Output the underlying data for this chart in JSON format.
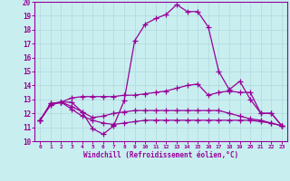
{
  "xlabel": "Windchill (Refroidissement éolien,°C)",
  "bg_color": "#c8eef0",
  "grid_color": "#b0d8da",
  "line_color": "#990099",
  "xlim": [
    -0.5,
    23.5
  ],
  "ylim": [
    10,
    20
  ],
  "xticks": [
    0,
    1,
    2,
    3,
    4,
    5,
    6,
    7,
    8,
    9,
    10,
    11,
    12,
    13,
    14,
    15,
    16,
    17,
    18,
    19,
    20,
    21,
    22,
    23
  ],
  "yticks": [
    10,
    11,
    12,
    13,
    14,
    15,
    16,
    17,
    18,
    19,
    20
  ],
  "line1_x": [
    0,
    1,
    2,
    3,
    4,
    5,
    6,
    7,
    8,
    9,
    10,
    11,
    12,
    13,
    14,
    15,
    16,
    17,
    18,
    19,
    20,
    21,
    22,
    23
  ],
  "line1_y": [
    11.5,
    12.7,
    12.8,
    12.8,
    12.1,
    10.9,
    10.5,
    11.1,
    12.9,
    17.2,
    18.4,
    18.8,
    19.1,
    19.8,
    19.3,
    19.3,
    18.2,
    15.0,
    13.7,
    14.3,
    13.0,
    12.0,
    12.0,
    11.1
  ],
  "line2_x": [
    0,
    1,
    2,
    3,
    4,
    5,
    6,
    7,
    8,
    9,
    10,
    11,
    12,
    13,
    14,
    15,
    16,
    17,
    18,
    19,
    20,
    21,
    22,
    23
  ],
  "line2_y": [
    11.5,
    12.7,
    12.8,
    13.1,
    13.2,
    13.2,
    13.2,
    13.2,
    13.3,
    13.3,
    13.4,
    13.5,
    13.6,
    13.8,
    14.0,
    14.1,
    13.3,
    13.5,
    13.6,
    13.5,
    13.5,
    12.0,
    12.0,
    11.1
  ],
  "line3_x": [
    0,
    1,
    2,
    3,
    4,
    5,
    6,
    7,
    8,
    9,
    10,
    11,
    12,
    13,
    14,
    15,
    16,
    17,
    18,
    19,
    20,
    21,
    22,
    23
  ],
  "line3_y": [
    11.5,
    12.6,
    12.8,
    12.5,
    12.1,
    11.7,
    11.8,
    12.0,
    12.1,
    12.2,
    12.2,
    12.2,
    12.2,
    12.2,
    12.2,
    12.2,
    12.2,
    12.2,
    12.0,
    11.8,
    11.6,
    11.5,
    11.3,
    11.1
  ],
  "line4_x": [
    0,
    1,
    2,
    3,
    4,
    5,
    6,
    7,
    8,
    9,
    10,
    11,
    12,
    13,
    14,
    15,
    16,
    17,
    18,
    19,
    20,
    21,
    22,
    23
  ],
  "line4_y": [
    11.5,
    12.6,
    12.8,
    12.3,
    11.8,
    11.5,
    11.3,
    11.2,
    11.3,
    11.4,
    11.5,
    11.5,
    11.5,
    11.5,
    11.5,
    11.5,
    11.5,
    11.5,
    11.5,
    11.5,
    11.5,
    11.4,
    11.3,
    11.1
  ]
}
